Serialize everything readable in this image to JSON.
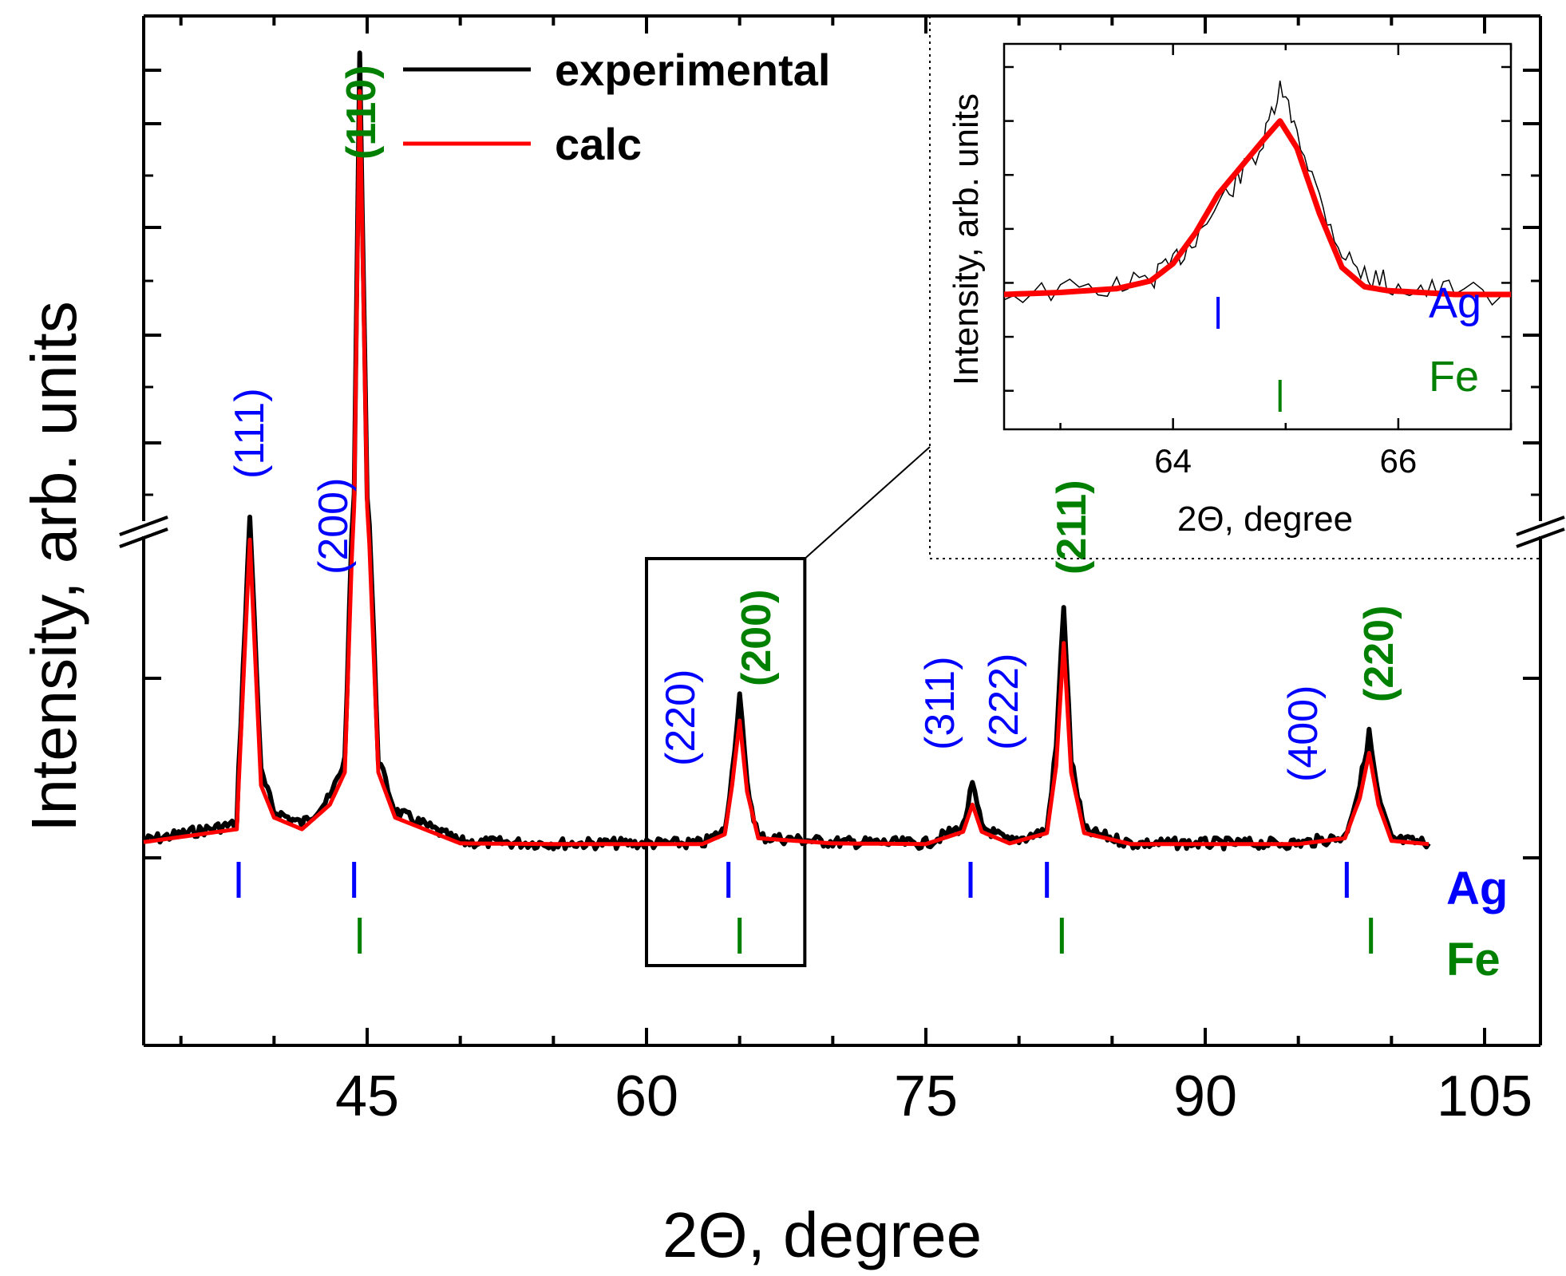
{
  "chart_data": {
    "type": "line",
    "title": "",
    "xlabel": "2Θ, degree",
    "ylabel": "Intensity, arb. units",
    "xlim": [
      33,
      108
    ],
    "xticks": [
      45,
      60,
      75,
      90,
      105
    ],
    "xtick_labels": [
      "45",
      "60",
      "75",
      "90",
      "105"
    ],
    "y_axis_break": true,
    "series": [
      {
        "name": "experimental",
        "color": "#000000",
        "x": [
          33,
          38,
          38.1,
          38.7,
          39.3,
          40,
          41.5,
          43,
          43.8,
          44.3,
          44.6,
          45.0,
          45.6,
          46.5,
          50,
          55,
          60,
          63,
          64.2,
          64.6,
          65.0,
          65.4,
          66,
          70,
          75,
          77,
          77.5,
          78,
          79.5,
          81.5,
          82.0,
          82.4,
          82.8,
          83.5,
          86,
          90,
          95,
          97.5,
          98.3,
          98.8,
          99.3,
          100,
          102
        ],
        "values": [
          0.7,
          2,
          6,
          26,
          6,
          3,
          2,
          4,
          7,
          30,
          95,
          30,
          7,
          3,
          0.6,
          0.5,
          0.5,
          0.5,
          1.5,
          6,
          12,
          5,
          1.0,
          0.6,
          0.5,
          1.8,
          5,
          1.8,
          0.6,
          1.5,
          8,
          19,
          7,
          1.5,
          0.5,
          0.5,
          0.5,
          1.0,
          5,
          9,
          4,
          0.8,
          0.5
        ]
      },
      {
        "name": "calc",
        "color": "#ff0000",
        "x": [
          33,
          38,
          38.1,
          38.7,
          39.3,
          40,
          41.5,
          43,
          43.8,
          44.3,
          44.6,
          45.0,
          45.6,
          46.5,
          50,
          55,
          60,
          63,
          64.2,
          64.6,
          65.0,
          65.4,
          66,
          70,
          75,
          77,
          77.5,
          78,
          79.5,
          81.5,
          82.0,
          82.4,
          82.8,
          83.5,
          86,
          90,
          95,
          97.5,
          98.3,
          98.8,
          99.3,
          100,
          102
        ],
        "values": [
          0.6,
          1.6,
          5,
          24,
          5,
          2.5,
          1.6,
          3.5,
          6,
          28,
          90,
          28,
          6,
          2.5,
          0.5,
          0.45,
          0.45,
          0.45,
          1.2,
          5,
          10,
          4.5,
          0.9,
          0.5,
          0.45,
          1.4,
          3.5,
          1.4,
          0.5,
          1.3,
          6.5,
          16,
          6,
          1.3,
          0.45,
          0.45,
          0.45,
          0.9,
          4,
          7.5,
          3.5,
          0.7,
          0.45
        ]
      }
    ],
    "reflections": {
      "Ag": {
        "color": "#0000ff",
        "positions": [
          38.1,
          44.3,
          64.4,
          77.4,
          81.5,
          97.6
        ],
        "labels": [
          "(111)",
          "(200)",
          "(220)",
          "(311)",
          "(222)",
          "(400)"
        ]
      },
      "Fe": {
        "color": "#008000",
        "positions": [
          44.6,
          65.0,
          82.3,
          98.9
        ],
        "labels": [
          "(110)",
          "(200)",
          "(211)",
          "(220)"
        ]
      }
    },
    "phase_labels": [
      "Ag",
      "Fe"
    ],
    "zoom_box_x": [
      60,
      68.5
    ],
    "inset": {
      "type": "line",
      "xlabel": "2Θ, degree",
      "ylabel": "Intensity, arb. units",
      "xlim": [
        62.5,
        67.0
      ],
      "xticks": [
        64,
        66
      ],
      "xtick_labels": [
        "64",
        "66"
      ],
      "ylim": [
        0,
        10
      ],
      "series": [
        {
          "name": "experimental",
          "color": "#000000",
          "x": [
            62.5,
            63.0,
            63.5,
            63.8,
            64.0,
            64.2,
            64.4,
            64.6,
            64.8,
            64.95,
            65.1,
            65.3,
            65.5,
            65.7,
            65.9,
            66.2,
            66.5,
            67.0
          ],
          "values": [
            3.5,
            3.6,
            3.7,
            3.9,
            4.3,
            5.0,
            5.8,
            6.6,
            7.4,
            8.8,
            7.8,
            6.0,
            4.6,
            4.0,
            3.8,
            3.6,
            3.6,
            3.5
          ]
        },
        {
          "name": "calc",
          "color": "#ff0000",
          "x": [
            62.5,
            63.0,
            63.5,
            63.8,
            64.0,
            64.2,
            64.4,
            64.6,
            64.8,
            64.95,
            65.1,
            65.3,
            65.5,
            65.7,
            65.9,
            66.2,
            66.5,
            67.0
          ],
          "values": [
            3.5,
            3.55,
            3.65,
            3.85,
            4.3,
            5.1,
            6.1,
            6.8,
            7.5,
            8.0,
            7.3,
            5.6,
            4.2,
            3.7,
            3.6,
            3.55,
            3.5,
            3.5
          ]
        }
      ],
      "reflections": {
        "Ag": {
          "color": "#0000ff",
          "positions": [
            64.4
          ]
        },
        "Fe": {
          "color": "#008000",
          "positions": [
            64.95
          ]
        }
      },
      "phase_labels": [
        "Ag",
        "Fe"
      ]
    }
  },
  "legend": {
    "items": [
      "experimental",
      "calc"
    ]
  }
}
